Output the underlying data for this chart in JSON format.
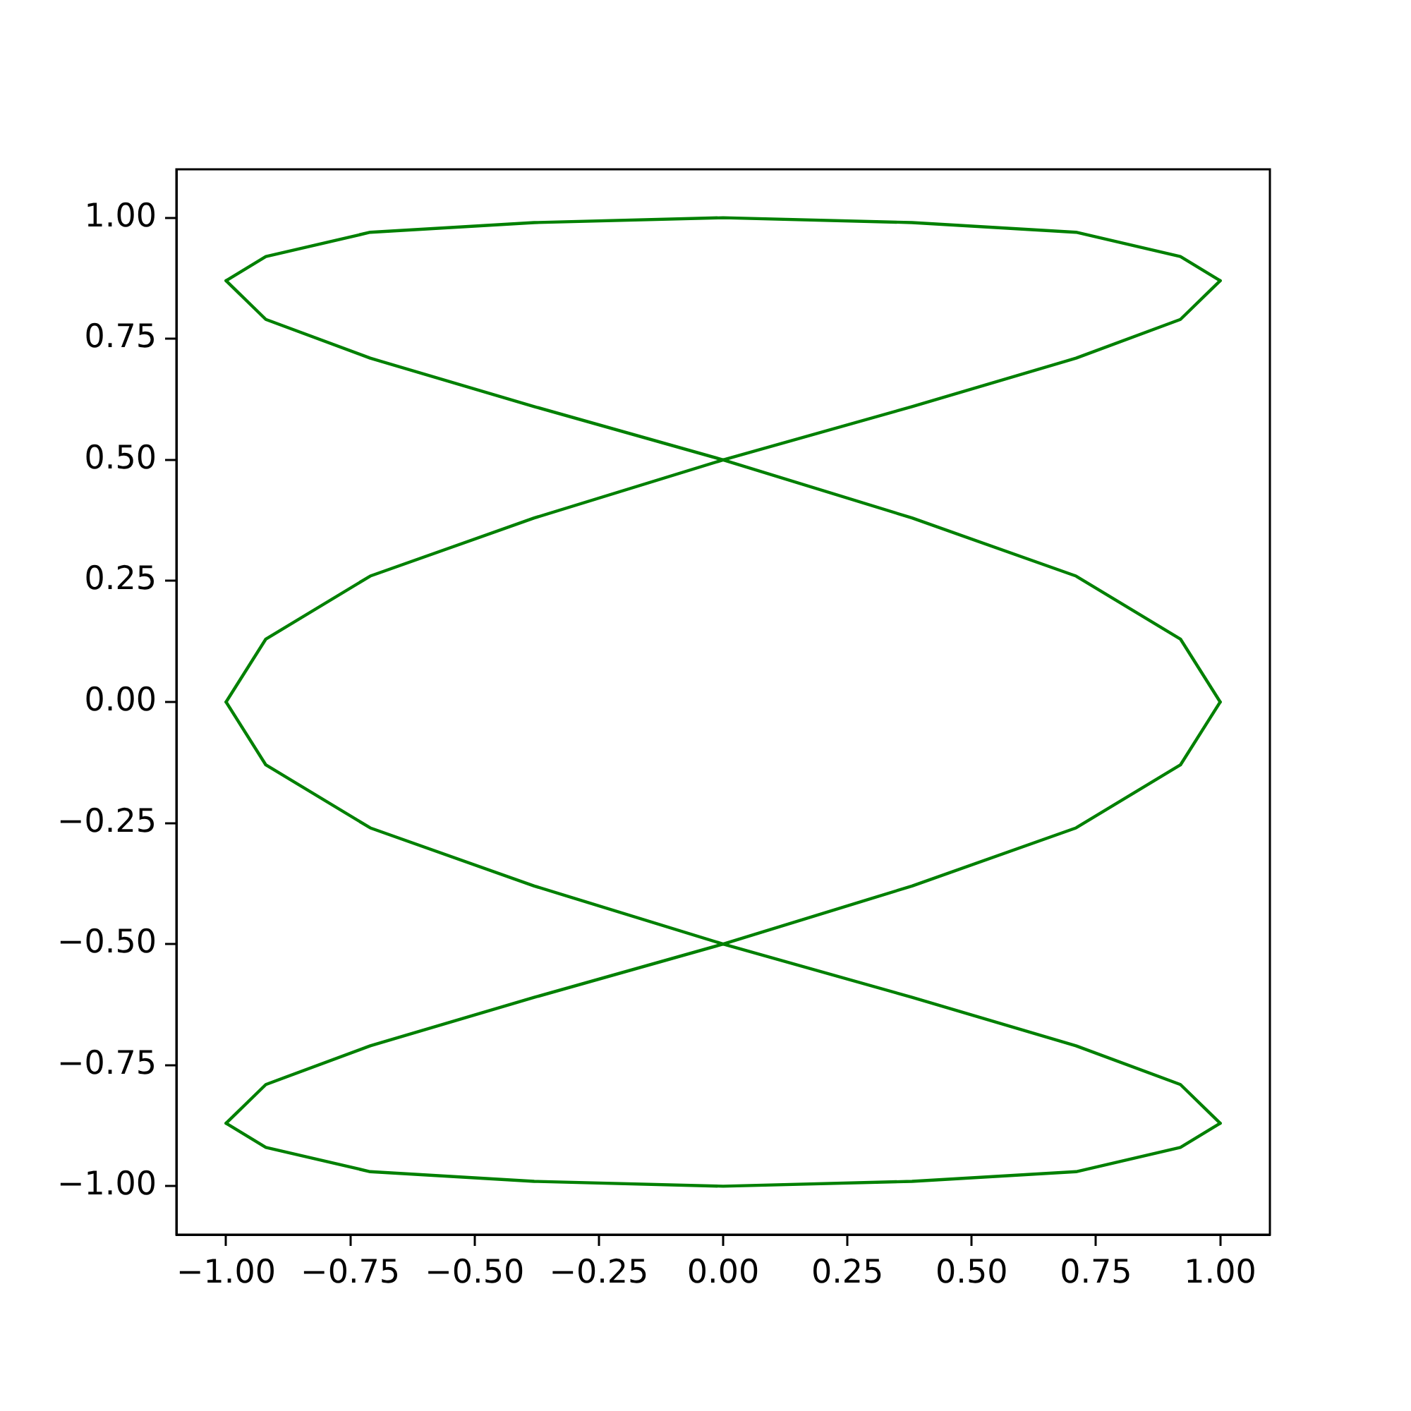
{
  "chart_data": {
    "type": "line",
    "marker": "none",
    "line_style": "solid",
    "grid": false,
    "legend": false,
    "series": [
      {
        "color": "#008000",
        "x": [
          1,
          0.92,
          0.71,
          0.38,
          0,
          -0.38,
          -0.71,
          -0.92,
          -1
        ],
        "values": [
          0,
          0.13,
          0.26,
          0.38,
          0.5,
          0.61,
          0.71,
          0.79,
          0.87
        ]
      },
      {
        "color": "#008000",
        "x": [
          -1,
          -0.92,
          -0.71,
          -0.38,
          0,
          0.38,
          0.71,
          0.92,
          1
        ],
        "values": [
          0.87,
          0.92,
          0.97,
          0.99,
          1,
          0.99,
          0.97,
          0.92,
          0.87
        ]
      },
      {
        "color": "#008000",
        "x": [
          1,
          0.92,
          0.71,
          0.38,
          0,
          -0.38,
          -0.71,
          -0.92,
          -1
        ],
        "values": [
          0.87,
          0.79,
          0.71,
          0.61,
          0.5,
          0.38,
          0.26,
          0.13,
          0
        ]
      },
      {
        "color": "#008000",
        "x": [
          -1,
          -0.92,
          -0.71,
          -0.38,
          0,
          0.38,
          0.71,
          0.92,
          1
        ],
        "values": [
          0,
          -0.13,
          -0.26,
          -0.38,
          -0.5,
          -0.61,
          -0.71,
          -0.79,
          -0.87
        ]
      },
      {
        "color": "#008000",
        "x": [
          1,
          0.92,
          0.71,
          0.38,
          0,
          -0.38,
          -0.71,
          -0.92,
          -1
        ],
        "values": [
          -0.87,
          -0.92,
          -0.97,
          -0.99,
          -1,
          -0.99,
          -0.97,
          -0.92,
          -0.87
        ]
      },
      {
        "color": "#008000",
        "x": [
          -1,
          -0.92,
          -0.71,
          -0.38,
          0,
          0.38,
          0.71,
          0.92,
          1
        ],
        "values": [
          -0.87,
          -0.79,
          -0.71,
          -0.61,
          -0.5,
          -0.38,
          -0.26,
          -0.13,
          0
        ]
      }
    ],
    "xlim": [
      -1.1,
      1.1
    ],
    "ylim": [
      -1.1,
      1.1
    ],
    "xticks": [
      {
        "value": -1,
        "label": "−1.00"
      },
      {
        "value": -0.75,
        "label": "−0.75"
      },
      {
        "value": -0.5,
        "label": "−0.50"
      },
      {
        "value": -0.25,
        "label": "−0.25"
      },
      {
        "value": 0,
        "label": "0.00"
      },
      {
        "value": 0.25,
        "label": "0.25"
      },
      {
        "value": 0.5,
        "label": "0.50"
      },
      {
        "value": 0.75,
        "label": "0.75"
      },
      {
        "value": 1,
        "label": "1.00"
      }
    ],
    "yticks": [
      {
        "value": -1,
        "label": "−1.00"
      },
      {
        "value": -0.75,
        "label": "−0.75"
      },
      {
        "value": -0.5,
        "label": "−0.50"
      },
      {
        "value": -0.25,
        "label": "−0.25"
      },
      {
        "value": 0,
        "label": "0.00"
      },
      {
        "value": 0.25,
        "label": "0.25"
      },
      {
        "value": 0.5,
        "label": "0.50"
      },
      {
        "value": 0.75,
        "label": "0.75"
      },
      {
        "value": 1,
        "label": "1.00"
      }
    ]
  }
}
